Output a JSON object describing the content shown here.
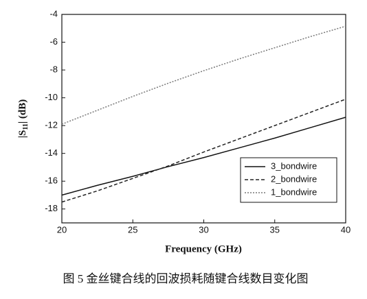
{
  "chart_data": {
    "type": "line",
    "x_label": "Frequency (GHz)",
    "y_label": {
      "prefix": "|S",
      "subscript": "11",
      "suffix": "| (dB)"
    },
    "caption": "图 5    金丝键合线的回波损耗随键合线数目变化图",
    "x": [
      20,
      22.5,
      25,
      27.5,
      30,
      32.5,
      35,
      37.5,
      40
    ],
    "series": [
      {
        "name": "3_bondwire",
        "color": "#111111",
        "line_style": "solid",
        "values": [
          -17.0,
          -16.3,
          -15.65,
          -14.95,
          -14.3,
          -13.6,
          -12.9,
          -12.15,
          -11.4
        ]
      },
      {
        "name": "2_bondwire",
        "color": "#222222",
        "line_style": "dashed",
        "values": [
          -17.5,
          -16.7,
          -15.8,
          -14.9,
          -13.9,
          -12.95,
          -12.0,
          -11.05,
          -10.1
        ]
      },
      {
        "name": "1_bondwire",
        "color": "#777777",
        "line_style": "dotted",
        "values": [
          -11.9,
          -10.9,
          -9.9,
          -8.95,
          -8.05,
          -7.2,
          -6.4,
          -5.6,
          -4.85
        ]
      }
    ],
    "xlim": [
      20,
      40
    ],
    "xticks": [
      20,
      25,
      30,
      35,
      40
    ],
    "ylim": [
      -19,
      -4
    ],
    "yticks": [
      -4,
      -6,
      -8,
      -10,
      -12,
      -14,
      -16,
      -18
    ],
    "legend": "lower right"
  }
}
